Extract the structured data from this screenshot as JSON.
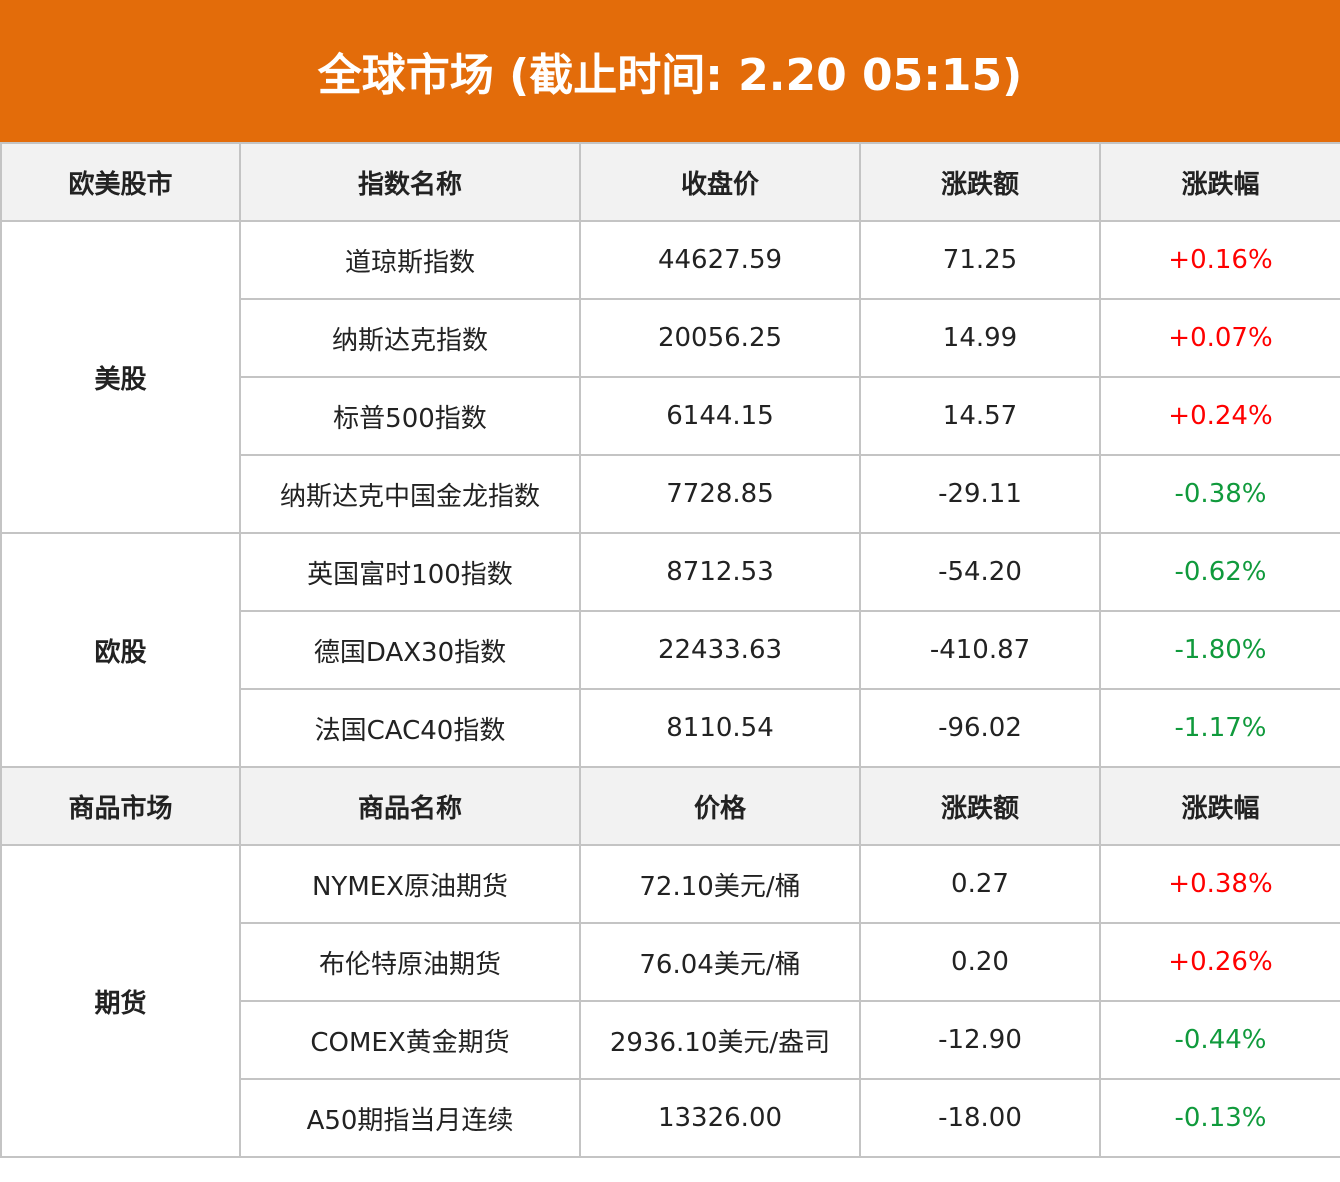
{
  "title": "全球市场 (截止时间: 2.20 05:15)",
  "colors": {
    "header_bg": "#e36c0a",
    "up": "#ff0000",
    "down": "#109a3c"
  },
  "sections": [
    {
      "headers": [
        "欧美股市",
        "指数名称",
        "收盘价",
        "涨跌额",
        "涨跌幅"
      ],
      "groups": [
        {
          "name": "美股",
          "rows": [
            {
              "name": "道琼斯指数",
              "price": "44627.59",
              "change": "71.25",
              "pct": "+0.16%",
              "dir": "up"
            },
            {
              "name": "纳斯达克指数",
              "price": "20056.25",
              "change": "14.99",
              "pct": "+0.07%",
              "dir": "up"
            },
            {
              "name": "标普500指数",
              "price": "6144.15",
              "change": "14.57",
              "pct": "+0.24%",
              "dir": "up"
            },
            {
              "name": "纳斯达克中国金龙指数",
              "price": "7728.85",
              "change": "-29.11",
              "pct": "-0.38%",
              "dir": "down"
            }
          ]
        },
        {
          "name": "欧股",
          "rows": [
            {
              "name": "英国富时100指数",
              "price": "8712.53",
              "change": "-54.20",
              "pct": "-0.62%",
              "dir": "down"
            },
            {
              "name": "德国DAX30指数",
              "price": "22433.63",
              "change": "-410.87",
              "pct": "-1.80%",
              "dir": "down"
            },
            {
              "name": "法国CAC40指数",
              "price": "8110.54",
              "change": "-96.02",
              "pct": "-1.17%",
              "dir": "down"
            }
          ]
        }
      ]
    },
    {
      "headers": [
        "商品市场",
        "商品名称",
        "价格",
        "涨跌额",
        "涨跌幅"
      ],
      "groups": [
        {
          "name": "期货",
          "rows": [
            {
              "name": "NYMEX原油期货",
              "price": "72.10美元/桶",
              "change": "0.27",
              "pct": "+0.38%",
              "dir": "up"
            },
            {
              "name": "布伦特原油期货",
              "price": "76.04美元/桶",
              "change": "0.20",
              "pct": "+0.26%",
              "dir": "up"
            },
            {
              "name": "COMEX黄金期货",
              "price": "2936.10美元/盎司",
              "change": "-12.90",
              "pct": "-0.44%",
              "dir": "down"
            },
            {
              "name": "A50期指当月连续",
              "price": "13326.00",
              "change": "-18.00",
              "pct": "-0.13%",
              "dir": "down"
            }
          ]
        }
      ]
    }
  ]
}
